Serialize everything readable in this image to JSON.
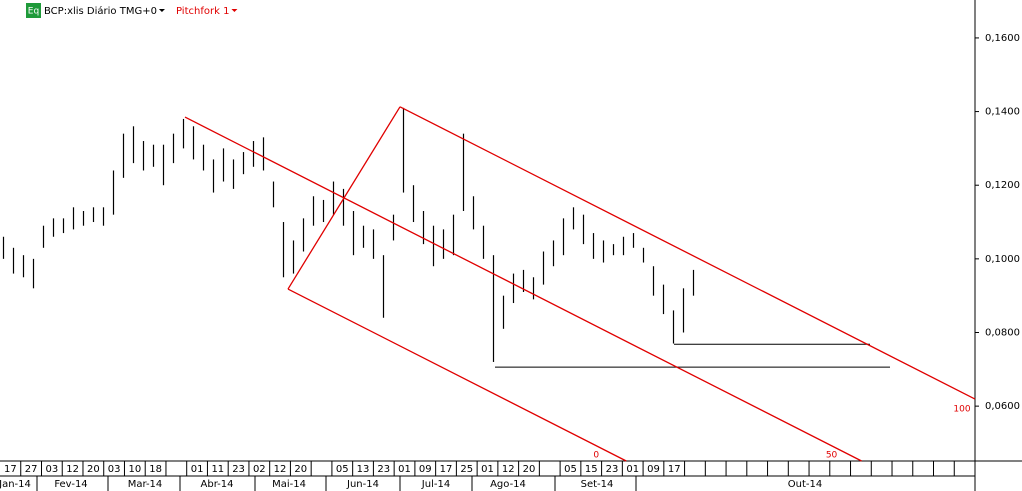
{
  "chart_data": {
    "type": "ohlc",
    "symbol": "BCP:xlis Diário TMG+0",
    "symbol_badge": "Eq",
    "high": [
      0.106,
      0.103,
      0.101,
      0.1,
      0.109,
      0.111,
      0.111,
      0.114,
      0.113,
      0.114,
      0.114,
      0.124,
      0.134,
      0.136,
      0.132,
      0.131,
      0.131,
      0.134,
      0.138,
      0.136,
      0.131,
      0.127,
      0.13,
      0.127,
      0.129,
      0.132,
      0.133,
      0.121,
      0.11,
      0.105,
      0.111,
      0.117,
      0.116,
      0.121,
      0.119,
      0.113,
      0.109,
      0.108,
      0.101,
      0.112,
      0.141,
      0.12,
      0.113,
      0.109,
      0.108,
      0.112,
      0.134,
      0.117,
      0.109,
      0.101,
      0.09,
      0.096,
      0.097,
      0.095,
      0.102,
      0.105,
      0.111,
      0.114,
      0.112,
      0.107,
      0.105,
      0.104,
      0.106,
      0.107,
      0.103,
      0.098,
      0.093,
      0.086,
      0.092,
      0.097
    ],
    "low": [
      0.1,
      0.096,
      0.095,
      0.092,
      0.103,
      0.106,
      0.107,
      0.108,
      0.109,
      0.11,
      0.109,
      0.112,
      0.122,
      0.126,
      0.124,
      0.125,
      0.12,
      0.126,
      0.13,
      0.127,
      0.124,
      0.118,
      0.121,
      0.119,
      0.123,
      0.125,
      0.124,
      0.114,
      0.095,
      0.096,
      0.102,
      0.109,
      0.11,
      0.112,
      0.109,
      0.101,
      0.103,
      0.1,
      0.084,
      0.105,
      0.118,
      0.11,
      0.104,
      0.098,
      0.1,
      0.101,
      0.113,
      0.108,
      0.1,
      0.072,
      0.081,
      0.088,
      0.091,
      0.089,
      0.093,
      0.098,
      0.101,
      0.108,
      0.104,
      0.1,
      0.099,
      0.101,
      0.101,
      0.103,
      0.099,
      0.09,
      0.085,
      0.077,
      0.08,
      0.09
    ],
    "color": "#000000",
    "xlim": [
      -0.3,
      97.2
    ],
    "ylim": [
      0.0451,
      0.1703
    ],
    "yticks": [
      {
        "value": 0.06,
        "label": "0,0600"
      },
      {
        "value": 0.08,
        "label": "0,0800"
      },
      {
        "value": 0.1,
        "label": "0,1000"
      },
      {
        "value": 0.12,
        "label": "0,1200"
      },
      {
        "value": 0.14,
        "label": "0,1400"
      },
      {
        "value": 0.16,
        "label": "0,1600"
      }
    ],
    "day_ticks": [
      "17",
      "27",
      "03",
      "12",
      "20",
      "03",
      "10",
      "18",
      null,
      "01",
      "11",
      "23",
      "02",
      "12",
      "20",
      null,
      "05",
      "13",
      "23",
      "01",
      "09",
      "17",
      "25",
      "01",
      "12",
      "20",
      null,
      "05",
      "15",
      "23",
      "01",
      "09",
      "17",
      null,
      null,
      null,
      null,
      null,
      null,
      null,
      null,
      null,
      null,
      null,
      null,
      null,
      null
    ],
    "month_ticks": [
      "Jan-14",
      "Fev-14",
      "Mar-14",
      "Abr-14",
      "Mai-14",
      "Jun-14",
      "Jul-14",
      "Ago-14",
      "Set-14",
      "Out-14"
    ],
    "pitchfork": {
      "name": "Pitchfork 1",
      "color": "#e00000",
      "points": [
        {
          "x": 18.2,
          "y": 0.1385
        },
        {
          "x": 39.7,
          "y": 0.1413
        },
        {
          "x": 28.5,
          "y": 0.0918
        }
      ],
      "levels": [
        0,
        50,
        100
      ]
    },
    "horizontal_lines": [
      {
        "y": 0.0768,
        "x": [
          67.1,
          86.7
        ]
      },
      {
        "y": 0.0706,
        "x": [
          49.2,
          88.7
        ]
      }
    ]
  }
}
